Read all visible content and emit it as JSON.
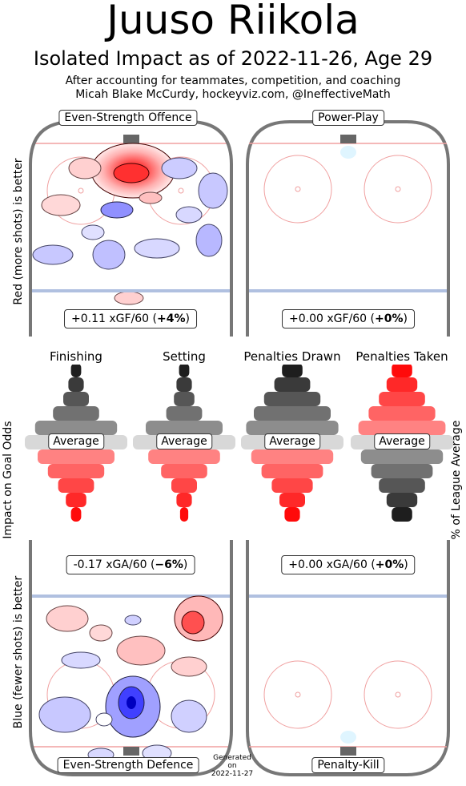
{
  "header": {
    "title": "Juuso Riikola",
    "subtitle": "Isolated Impact as of 2022-11-26, Age 29",
    "line1": "After accounting for teammates, competition, and coaching",
    "line2": "Micah Blake McCurdy, hockeyviz.com, @IneffectiveMath"
  },
  "axis_labels": {
    "top_left": "Red (more shots) is better",
    "middle_left": "Impact on Goal Odds",
    "middle_right": "% of League Average",
    "bottom_left": "Blue (fewer shots) is better"
  },
  "panels": {
    "es_offence": {
      "label": "Even-Strength Offence",
      "stat_prefix": "+0.11 xGF/60 (",
      "stat_pct": "+4%",
      "stat_suffix": ")"
    },
    "power_play": {
      "label": "Power-Play",
      "stat_prefix": "+0.00 xGF/60 (",
      "stat_pct": "+0%",
      "stat_suffix": ")"
    },
    "es_defence": {
      "label": "Even-Strength Defence",
      "stat_prefix": "-0.17 xGA/60 (",
      "stat_pct": "−6%",
      "stat_suffix": ")"
    },
    "penalty_kill": {
      "label": "Penalty-Kill",
      "stat_prefix": "+0.00 xGA/60 (",
      "stat_pct": "+0%",
      "stat_suffix": ")"
    }
  },
  "generated": {
    "line1": "Generated",
    "line2": "on",
    "line3": "2022-11-27"
  },
  "colors": {
    "red": "#ff0000",
    "blue": "#0000ff",
    "grey": "#808080",
    "rink_line": "#777777",
    "blue_line": "#b0c0e0",
    "goal_line": "#f0a0a0"
  },
  "chart_data": {
    "type": "violin",
    "middle_label": "Average",
    "categories": [
      "Finishing",
      "Setting",
      "Penalties Drawn",
      "Penalties Taken"
    ],
    "series": [
      {
        "category": "Finishing",
        "direction": "worse",
        "relative_width": [
          0.1,
          0.15,
          0.25,
          0.45,
          0.8,
          1.0,
          0.75,
          0.55,
          0.35,
          0.2,
          0.1
        ]
      },
      {
        "category": "Setting",
        "direction": "worse",
        "relative_width": [
          0.1,
          0.15,
          0.2,
          0.35,
          0.75,
          1.0,
          0.7,
          0.45,
          0.25,
          0.15,
          0.08
        ]
      },
      {
        "category": "Penalties Drawn",
        "direction": "worse",
        "relative_width": [
          0.2,
          0.35,
          0.55,
          0.75,
          0.9,
          1.0,
          0.8,
          0.6,
          0.4,
          0.25,
          0.15
        ]
      },
      {
        "category": "Penalties Taken",
        "direction": "better",
        "relative_width": [
          0.2,
          0.3,
          0.45,
          0.65,
          0.85,
          1.0,
          0.8,
          0.6,
          0.45,
          0.3,
          0.2
        ]
      }
    ]
  }
}
